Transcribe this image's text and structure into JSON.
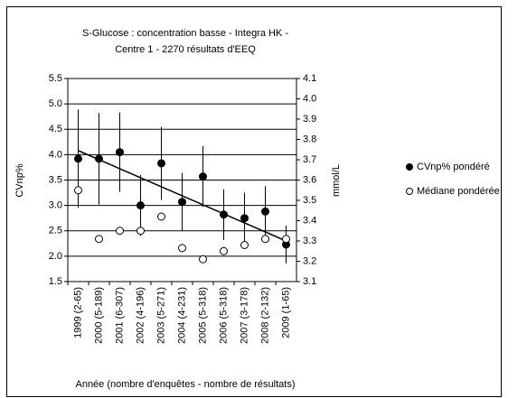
{
  "chart_data": {
    "type": "errorscatter",
    "title": [
      "S-Glucose : concentration basse - Integra HK -",
      "Centre 1 - 2270 résultats d'EEQ"
    ],
    "x_label": "Année (nombre d'enquêtes - nombre de résultats)",
    "y_label": "CVnp%",
    "y2_label": "mmol/L",
    "categories": [
      "1999 (2-65)",
      "2000 (5-189)",
      "2001 (6-307)",
      "2002 (4-196)",
      "2003 (5-271)",
      "2004 (4-231)",
      "2005 (5-318)",
      "2006 (5-318)",
      "2007 (3-178)",
      "2008 (2-132)",
      "2009 (1-65)"
    ],
    "series": [
      {
        "name": "CVnp% pondéré",
        "color": "#000000",
        "axis": "y",
        "values": [
          3.92,
          3.92,
          4.05,
          3.0,
          3.83,
          3.07,
          3.57,
          2.82,
          2.75,
          2.88,
          2.23
        ],
        "errors": [
          0.97,
          0.9,
          0.78,
          0.6,
          0.72,
          0.57,
          0.6,
          0.5,
          0.5,
          0.5,
          0.37
        ]
      },
      {
        "name": "Médiane pondérée",
        "color": "#ffffff",
        "axis": "y2",
        "values": [
          3.55,
          3.31,
          3.35,
          3.35,
          3.42,
          3.265,
          3.21,
          3.25,
          3.28,
          3.31,
          3.31
        ]
      }
    ],
    "trendline": [
      4.08,
      2.3
    ],
    "ylim": [
      1.5,
      5.5
    ],
    "yticks": [
      1.5,
      {
        "value": 2,
        "label": "2.0"
      },
      2.5,
      {
        "value": 3,
        "label": "3.0"
      },
      3.5,
      {
        "value": 4,
        "label": "4.0"
      },
      4.5,
      {
        "value": 5,
        "label": "5.0"
      },
      5.5
    ],
    "y2lim": [
      3.1,
      4.1
    ],
    "y2ticks": [
      3.1,
      3.2,
      3.3,
      3.4,
      3.5,
      3.6,
      3.7,
      3.8,
      3.9,
      {
        "value": 4,
        "label": "4.0"
      },
      4.1
    ],
    "grid": true,
    "legend": "right"
  }
}
